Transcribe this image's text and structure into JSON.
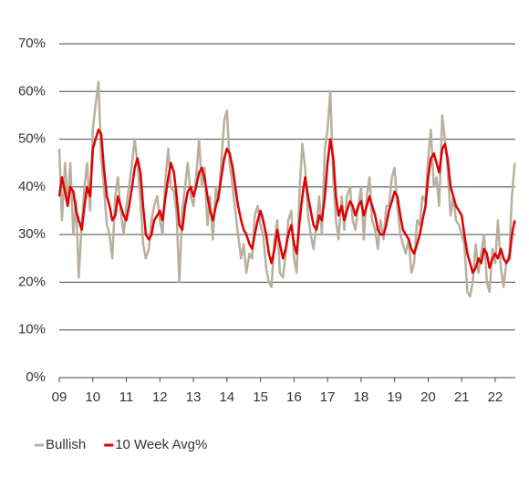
{
  "chart_data": {
    "type": "line",
    "x": [
      2009,
      2009.08,
      2009.17,
      2009.25,
      2009.33,
      2009.42,
      2009.5,
      2009.58,
      2009.67,
      2009.75,
      2009.83,
      2009.92,
      2010,
      2010.08,
      2010.17,
      2010.25,
      2010.33,
      2010.42,
      2010.5,
      2010.58,
      2010.67,
      2010.75,
      2010.83,
      2010.92,
      2011,
      2011.08,
      2011.17,
      2011.25,
      2011.33,
      2011.42,
      2011.5,
      2011.58,
      2011.67,
      2011.75,
      2011.83,
      2011.92,
      2012,
      2012.08,
      2012.17,
      2012.25,
      2012.33,
      2012.42,
      2012.5,
      2012.58,
      2012.67,
      2012.75,
      2012.83,
      2012.92,
      2013,
      2013.08,
      2013.17,
      2013.25,
      2013.33,
      2013.42,
      2013.5,
      2013.58,
      2013.67,
      2013.75,
      2013.83,
      2013.92,
      2014,
      2014.08,
      2014.17,
      2014.25,
      2014.33,
      2014.42,
      2014.5,
      2014.58,
      2014.67,
      2014.75,
      2014.83,
      2014.92,
      2015,
      2015.08,
      2015.17,
      2015.25,
      2015.33,
      2015.42,
      2015.5,
      2015.58,
      2015.67,
      2015.75,
      2015.83,
      2015.92,
      2016,
      2016.08,
      2016.17,
      2016.25,
      2016.33,
      2016.42,
      2016.5,
      2016.58,
      2016.67,
      2016.75,
      2016.83,
      2016.92,
      2017,
      2017.08,
      2017.17,
      2017.25,
      2017.33,
      2017.42,
      2017.5,
      2017.58,
      2017.67,
      2017.75,
      2017.83,
      2017.92,
      2018,
      2018.08,
      2018.17,
      2018.25,
      2018.33,
      2018.42,
      2018.5,
      2018.58,
      2018.67,
      2018.75,
      2018.83,
      2018.92,
      2019,
      2019.08,
      2019.17,
      2019.25,
      2019.33,
      2019.42,
      2019.5,
      2019.58,
      2019.67,
      2019.75,
      2019.83,
      2019.92,
      2020,
      2020.08,
      2020.17,
      2020.25,
      2020.33,
      2020.42,
      2020.5,
      2020.58,
      2020.67,
      2020.75,
      2020.83,
      2020.92,
      2021,
      2021.08,
      2021.17,
      2021.25,
      2021.33,
      2021.42,
      2021.5,
      2021.58,
      2021.67,
      2021.75,
      2021.83,
      2021.92,
      2022,
      2022.08,
      2022.17,
      2022.25,
      2022.33,
      2022.42,
      2022.5,
      2022.58
    ],
    "series": [
      {
        "name": "Bullish",
        "color": "#b8b09f",
        "width": 2.5,
        "values": [
          48,
          33,
          45,
          36,
          45,
          30,
          37,
          21,
          32,
          40,
          45,
          35,
          52,
          57,
          62,
          46,
          40,
          32,
          30,
          25,
          38,
          42,
          35,
          30,
          36,
          40,
          45,
          50,
          45,
          37,
          28,
          25,
          27,
          33,
          36,
          38,
          33,
          30,
          42,
          48,
          40,
          39,
          34,
          20,
          35,
          40,
          45,
          38,
          36,
          42,
          50,
          40,
          44,
          32,
          38,
          29,
          40,
          37,
          45,
          54,
          56,
          45,
          40,
          35,
          30,
          25,
          28,
          22,
          26,
          25,
          34,
          36,
          32,
          30,
          23,
          20,
          19,
          29,
          33,
          22,
          21,
          26,
          33,
          35,
          25,
          22,
          40,
          49,
          44,
          34,
          30,
          27,
          32,
          38,
          30,
          48,
          52,
          60,
          42,
          33,
          29,
          38,
          31,
          38,
          40,
          33,
          31,
          36,
          40,
          29,
          38,
          42,
          33,
          31,
          27,
          33,
          29,
          36,
          36,
          42,
          44,
          36,
          30,
          28,
          26,
          29,
          22,
          24,
          33,
          32,
          38,
          37,
          46,
          52,
          40,
          42,
          36,
          55,
          50,
          44,
          34,
          38,
          33,
          32,
          30,
          28,
          18,
          17,
          20,
          28,
          22,
          26,
          30,
          20,
          18,
          27,
          24,
          33,
          23,
          19,
          24,
          26,
          38,
          45
        ]
      },
      {
        "name": "10 Week Avg%",
        "color": "#e00000",
        "width": 2.5,
        "values": [
          38,
          42,
          39,
          36,
          40,
          39,
          35,
          33,
          31,
          36,
          40,
          38,
          48,
          50,
          52,
          51,
          44,
          38,
          36,
          33,
          34,
          38,
          36,
          34,
          33,
          36,
          40,
          44,
          46,
          43,
          36,
          30,
          29,
          30,
          33,
          34,
          35,
          33,
          38,
          42,
          45,
          43,
          38,
          32,
          31,
          36,
          39,
          40,
          38,
          40,
          43,
          44,
          42,
          38,
          35,
          33,
          36,
          38,
          42,
          46,
          48,
          47,
          44,
          40,
          36,
          33,
          31,
          30,
          28,
          27,
          30,
          33,
          35,
          33,
          30,
          26,
          24,
          27,
          31,
          28,
          25,
          27,
          30,
          32,
          28,
          26,
          33,
          38,
          42,
          38,
          35,
          32,
          31,
          34,
          33,
          38,
          45,
          50,
          46,
          38,
          34,
          36,
          33,
          35,
          37,
          36,
          34,
          36,
          37,
          34,
          36,
          38,
          36,
          34,
          31,
          30,
          30,
          32,
          35,
          37,
          39,
          38,
          34,
          31,
          30,
          29,
          27,
          26,
          28,
          30,
          33,
          36,
          42,
          46,
          47,
          45,
          43,
          48,
          49,
          46,
          40,
          38,
          36,
          35,
          34,
          30,
          26,
          24,
          22,
          23,
          25,
          24,
          27,
          26,
          23,
          25,
          26,
          25,
          27,
          25,
          24,
          25,
          30,
          33
        ]
      }
    ],
    "xlim": [
      2009,
      2022.6
    ],
    "xticks": [
      {
        "value": 2009,
        "label": "09"
      },
      {
        "value": 2010,
        "label": "10"
      },
      {
        "value": 2011,
        "label": "11"
      },
      {
        "value": 2012,
        "label": "12"
      },
      {
        "value": 2013,
        "label": "13"
      },
      {
        "value": 2014,
        "label": "14"
      },
      {
        "value": 2015,
        "label": "15"
      },
      {
        "value": 2016,
        "label": "16"
      },
      {
        "value": 2017,
        "label": "17"
      },
      {
        "value": 2018,
        "label": "18"
      },
      {
        "value": 2019,
        "label": "19"
      },
      {
        "value": 2020,
        "label": "20"
      },
      {
        "value": 2021,
        "label": "21"
      },
      {
        "value": 2022,
        "label": "22"
      }
    ],
    "ylim": [
      0,
      70
    ],
    "yticks": [
      {
        "value": 0,
        "label": "0%"
      },
      {
        "value": 10,
        "label": "10%"
      },
      {
        "value": 20,
        "label": "20%"
      },
      {
        "value": 30,
        "label": "30%"
      },
      {
        "value": 40,
        "label": "40%"
      },
      {
        "value": 50,
        "label": "50%"
      },
      {
        "value": 60,
        "label": "60%"
      },
      {
        "value": 70,
        "label": "70%"
      }
    ],
    "grid": true,
    "legend": "bottom-left"
  }
}
